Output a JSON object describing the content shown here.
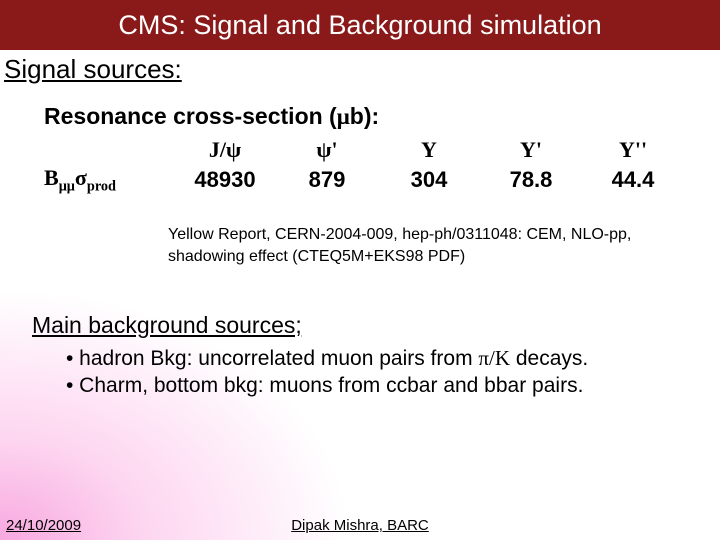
{
  "title": "CMS: Signal and Background simulation",
  "signal_sources_label": "Signal sources:",
  "panel": {
    "title_prefix": "Resonance cross-section (",
    "title_unit_greek": "μ",
    "title_unit_suffix": "b):",
    "row_label_B": "B",
    "row_label_sub_greek": "μμ",
    "row_label_sigma": "σ",
    "row_label_prod": "prod",
    "headers": [
      "J/ψ",
      "ψ'",
      "Υ",
      "Υ'",
      "Υ''"
    ],
    "values": [
      "48930",
      "879",
      "304",
      "78.8",
      "44.4"
    ]
  },
  "caption_l1": "Yellow Report, CERN-2004-009, hep-ph/0311048: CEM, NLO-pp,",
  "caption_l2": "shadowing effect (CTEQ5M+EKS98 PDF)",
  "main_bkg_label": "Main background sources;",
  "bullets": {
    "b1_pre": "• hadron Bkg: uncorrelated muon pairs from ",
    "b1_greek": "π/K",
    "b1_post": " decays.",
    "b2": "• Charm, bottom bkg: muons from ccbar and bbar pairs."
  },
  "footer": {
    "date": "24/10/2009",
    "author": "Dipak Mishra, BARC"
  },
  "colors": {
    "title_bg": "#8a1a1a",
    "title_fg": "#ffffff",
    "text": "#000000"
  }
}
